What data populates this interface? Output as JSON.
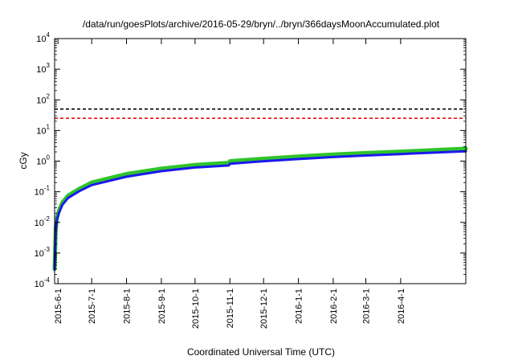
{
  "chart_data": {
    "type": "line",
    "title": "/data/run/goesPlots/archive/2016-05-29/bryn/../bryn/366daysMoonAccumulated.plot",
    "xlabel": "Coordinated Universal Time (UTC)",
    "ylabel": "cGy",
    "y_scale": "log",
    "ylim": [
      0.0001,
      10000
    ],
    "xlim": [
      "2015-05-29",
      "2016-05-29"
    ],
    "grid": false,
    "y_ticks": [
      {
        "base": "10",
        "exp": "-4",
        "value": 0.0001
      },
      {
        "base": "10",
        "exp": "-3",
        "value": 0.001
      },
      {
        "base": "10",
        "exp": "-2",
        "value": 0.01
      },
      {
        "base": "10",
        "exp": "-1",
        "value": 0.1
      },
      {
        "base": "10",
        "exp": "0",
        "value": 1
      },
      {
        "base": "10",
        "exp": "1",
        "value": 10
      },
      {
        "base": "10",
        "exp": "2",
        "value": 100
      },
      {
        "base": "10",
        "exp": "3",
        "value": 1000
      },
      {
        "base": "10",
        "exp": "4",
        "value": 10000
      }
    ],
    "x_ticks": [
      {
        "label": "2015-6-1",
        "date": "2015-06-01"
      },
      {
        "label": "2015-7-1",
        "date": "2015-07-01"
      },
      {
        "label": "2015-8-1",
        "date": "2015-08-01"
      },
      {
        "label": "2015-9-1",
        "date": "2015-09-01"
      },
      {
        "label": "2015-10-1",
        "date": "2015-10-01"
      },
      {
        "label": "2015-11-1",
        "date": "2015-11-01"
      },
      {
        "label": "2015-12-1",
        "date": "2015-12-01"
      },
      {
        "label": "2016-1-1",
        "date": "2016-01-01"
      },
      {
        "label": "2016-2-1",
        "date": "2016-02-01"
      },
      {
        "label": "2016-3-1",
        "date": "2016-03-01"
      },
      {
        "label": "2016-4-1",
        "date": "2016-04-01"
      }
    ],
    "reference_lines": [
      {
        "value": 50,
        "color": "#000000",
        "style": "dashed"
      },
      {
        "value": 25,
        "color": "#e8120c",
        "style": "dashed"
      }
    ],
    "series": [
      {
        "color": "#2ec42a",
        "points": [
          {
            "x": "2015-05-29",
            "y": 0.0003
          },
          {
            "x": "2015-05-30",
            "y": 0.006
          },
          {
            "x": "2015-05-31",
            "y": 0.014
          },
          {
            "x": "2015-06-02",
            "y": 0.025
          },
          {
            "x": "2015-06-05",
            "y": 0.045
          },
          {
            "x": "2015-06-10",
            "y": 0.075
          },
          {
            "x": "2015-06-20",
            "y": 0.125
          },
          {
            "x": "2015-07-01",
            "y": 0.2
          },
          {
            "x": "2015-08-01",
            "y": 0.38
          },
          {
            "x": "2015-09-01",
            "y": 0.57
          },
          {
            "x": "2015-10-01",
            "y": 0.75
          },
          {
            "x": "2015-10-31",
            "y": 0.88
          },
          {
            "x": "2015-11-01",
            "y": 1.0
          },
          {
            "x": "2015-12-01",
            "y": 1.2
          },
          {
            "x": "2016-01-01",
            "y": 1.42
          },
          {
            "x": "2016-02-01",
            "y": 1.65
          },
          {
            "x": "2016-03-01",
            "y": 1.85
          },
          {
            "x": "2016-04-01",
            "y": 2.05
          },
          {
            "x": "2016-05-01",
            "y": 2.3
          },
          {
            "x": "2016-05-29",
            "y": 2.55
          }
        ]
      },
      {
        "color": "#1a1aee",
        "points": [
          {
            "x": "2015-05-29",
            "y": 0.0003
          },
          {
            "x": "2015-05-30",
            "y": 0.005
          },
          {
            "x": "2015-05-31",
            "y": 0.012
          },
          {
            "x": "2015-06-02",
            "y": 0.021
          },
          {
            "x": "2015-06-05",
            "y": 0.038
          },
          {
            "x": "2015-06-10",
            "y": 0.063
          },
          {
            "x": "2015-06-20",
            "y": 0.105
          },
          {
            "x": "2015-07-01",
            "y": 0.165
          },
          {
            "x": "2015-08-01",
            "y": 0.31
          },
          {
            "x": "2015-09-01",
            "y": 0.47
          },
          {
            "x": "2015-10-01",
            "y": 0.62
          },
          {
            "x": "2015-10-31",
            "y": 0.72
          },
          {
            "x": "2015-11-01",
            "y": 0.82
          },
          {
            "x": "2015-12-01",
            "y": 0.99
          },
          {
            "x": "2016-01-01",
            "y": 1.17
          },
          {
            "x": "2016-02-01",
            "y": 1.36
          },
          {
            "x": "2016-03-01",
            "y": 1.53
          },
          {
            "x": "2016-04-01",
            "y": 1.7
          },
          {
            "x": "2016-05-01",
            "y": 1.9
          },
          {
            "x": "2016-05-29",
            "y": 2.1
          }
        ]
      }
    ]
  }
}
